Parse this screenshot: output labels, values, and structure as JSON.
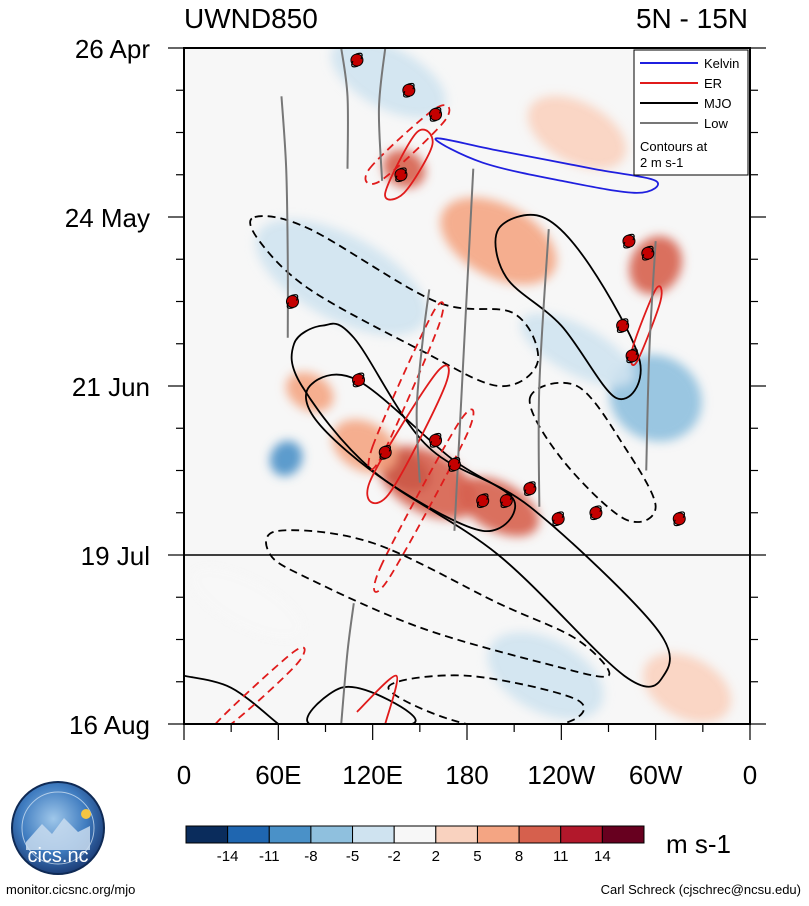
{
  "chart_data": {
    "type": "heatmap",
    "title_left": "UWND850",
    "title_right": "5N - 15N",
    "xlabels": [
      "0",
      "60E",
      "120E",
      "180",
      "120W",
      "60W",
      "0"
    ],
    "xlabel_lon": [
      0,
      60,
      120,
      180,
      240,
      300,
      360
    ],
    "ylabels": [
      "26 Apr",
      "24 May",
      "21 Jun",
      "19 Jul",
      "16 Aug"
    ],
    "ylabel_day": [
      0,
      28,
      56,
      84,
      112
    ],
    "xlim": [
      0,
      360
    ],
    "ylim": [
      0,
      112
    ],
    "forecast_start_day": 84,
    "legend": {
      "entries": [
        {
          "name": "Kelvin",
          "color": "#1f1fdf"
        },
        {
          "name": "ER",
          "color": "#e01b1b"
        },
        {
          "name": "MJO",
          "color": "#000000"
        },
        {
          "name": "Low",
          "color": "#777777"
        }
      ],
      "note_line1": "Contours at",
      "note_line2": "2 m s-1"
    },
    "colorbar": {
      "labels": [
        "-14",
        "-11",
        "-8",
        "-5",
        "-2",
        "2",
        "5",
        "8",
        "11",
        "14"
      ],
      "colors": [
        "#0a2c5c",
        "#1f66b0",
        "#4a91c8",
        "#8fc0de",
        "#cfe3f0",
        "#f7f7f7",
        "#f9d2bf",
        "#f4a583",
        "#d6604d",
        "#b2182b",
        "#67001f"
      ],
      "units": "m s-1"
    },
    "anomaly_blobs": [
      {
        "lon": 140,
        "day": 70,
        "rx": 18,
        "ry": 3,
        "value": 14
      },
      {
        "lon": 155,
        "day": 72,
        "rx": 34,
        "ry": 5,
        "value": 9
      },
      {
        "lon": 200,
        "day": 76,
        "rx": 28,
        "ry": 4,
        "value": 8
      },
      {
        "lon": 115,
        "day": 66,
        "rx": 22,
        "ry": 4,
        "value": 6
      },
      {
        "lon": 80,
        "day": 57,
        "rx": 16,
        "ry": 3,
        "value": 6
      },
      {
        "lon": 300,
        "day": 36,
        "rx": 16,
        "ry": 5,
        "value": 9
      },
      {
        "lon": 140,
        "day": 20,
        "rx": 14,
        "ry": 3,
        "value": 10
      },
      {
        "lon": 200,
        "day": 32,
        "rx": 40,
        "ry": 6,
        "value": 5
      },
      {
        "lon": 100,
        "day": 38,
        "rx": 60,
        "ry": 7,
        "value": -5
      },
      {
        "lon": 300,
        "day": 58,
        "rx": 30,
        "ry": 7,
        "value": -8
      },
      {
        "lon": 65,
        "day": 68,
        "rx": 10,
        "ry": 3,
        "value": -10
      },
      {
        "lon": 130,
        "day": 5,
        "rx": 40,
        "ry": 5,
        "value": -4
      },
      {
        "lon": 250,
        "day": 14,
        "rx": 34,
        "ry": 5,
        "value": 4
      },
      {
        "lon": 230,
        "day": 104,
        "rx": 40,
        "ry": 6,
        "value": -3
      },
      {
        "lon": 320,
        "day": 106,
        "rx": 30,
        "ry": 5,
        "value": 3
      },
      {
        "lon": 40,
        "day": 92,
        "rx": 40,
        "ry": 4,
        "value": -2
      },
      {
        "lon": 250,
        "day": 50,
        "rx": 40,
        "ry": 4,
        "value": -4
      }
    ],
    "mjo_contours": [
      {
        "sign": "pos",
        "points": [
          [
            88,
            46
          ],
          [
            108,
            48
          ],
          [
            155,
            66
          ],
          [
            220,
            76
          ],
          [
            300,
            96
          ],
          [
            305,
            104
          ],
          [
            280,
            104
          ],
          [
            200,
            84
          ],
          [
            120,
            70
          ],
          [
            75,
            56
          ],
          [
            70,
            49
          ]
        ]
      },
      {
        "sign": "pos",
        "points": [
          [
            80,
            56
          ],
          [
            110,
            55
          ],
          [
            170,
            68
          ],
          [
            210,
            75
          ],
          [
            190,
            80
          ],
          [
            130,
            72
          ],
          [
            85,
            62
          ]
        ]
      },
      {
        "sign": "pos",
        "points": [
          [
            200,
            30
          ],
          [
            228,
            28
          ],
          [
            258,
            36
          ],
          [
            290,
            52
          ],
          [
            275,
            58
          ],
          [
            240,
            46
          ],
          [
            205,
            38
          ]
        ]
      },
      {
        "sign": "pos",
        "points": [
          [
            0,
            104
          ],
          [
            30,
            106
          ],
          [
            60,
            112
          ]
        ]
      },
      {
        "sign": "pos",
        "points": [
          [
            80,
            112
          ],
          [
            100,
            106
          ],
          [
            130,
            108
          ],
          [
            145,
            112
          ]
        ]
      },
      {
        "sign": "neg",
        "points": [
          [
            45,
            28
          ],
          [
            80,
            30
          ],
          [
            160,
            42
          ],
          [
            210,
            44
          ],
          [
            225,
            52
          ],
          [
            200,
            56
          ],
          [
            150,
            50
          ],
          [
            80,
            40
          ],
          [
            48,
            32
          ]
        ]
      },
      {
        "sign": "neg",
        "points": [
          [
            60,
            80
          ],
          [
            120,
            82
          ],
          [
            200,
            92
          ],
          [
            250,
            98
          ],
          [
            270,
            104
          ],
          [
            230,
            102
          ],
          [
            150,
            96
          ],
          [
            80,
            88
          ],
          [
            55,
            84
          ]
        ]
      },
      {
        "sign": "neg",
        "points": [
          [
            220,
            58
          ],
          [
            250,
            56
          ],
          [
            280,
            66
          ],
          [
            300,
            76
          ],
          [
            280,
            78
          ],
          [
            240,
            68
          ]
        ]
      },
      {
        "sign": "neg",
        "points": [
          [
            130,
            106
          ],
          [
            180,
            104
          ],
          [
            250,
            108
          ],
          [
            240,
            112
          ],
          [
            180,
            112
          ]
        ]
      }
    ],
    "er_contours": [
      {
        "sign": "pos",
        "points": [
          [
            128,
            24
          ],
          [
            148,
            14
          ],
          [
            158,
            16
          ],
          [
            140,
            24
          ]
        ]
      },
      {
        "sign": "pos",
        "points": [
          [
            118,
            72
          ],
          [
            160,
            54
          ],
          [
            166,
            56
          ],
          [
            130,
            74
          ]
        ]
      },
      {
        "sign": "pos",
        "points": [
          [
            110,
            110
          ],
          [
            135,
            104
          ],
          [
            128,
            112
          ]
        ]
      },
      {
        "sign": "neg",
        "points": [
          [
            118,
            20
          ],
          [
            160,
            10
          ],
          [
            166,
            12
          ],
          [
            125,
            22
          ]
        ]
      },
      {
        "sign": "neg",
        "points": [
          [
            120,
            66
          ],
          [
            158,
            44
          ],
          [
            162,
            46
          ],
          [
            125,
            68
          ]
        ]
      },
      {
        "sign": "neg",
        "points": [
          [
            125,
            86
          ],
          [
            175,
            62
          ],
          [
            180,
            64
          ],
          [
            130,
            88
          ]
        ]
      },
      {
        "sign": "neg",
        "points": [
          [
            20,
            112
          ],
          [
            70,
            100
          ],
          [
            72,
            102
          ],
          [
            30,
            112
          ]
        ]
      },
      {
        "sign": "pos",
        "points": [
          [
            285,
            50
          ],
          [
            300,
            40
          ],
          [
            303,
            42
          ],
          [
            288,
            52
          ]
        ]
      }
    ],
    "kelvin_contours": [
      {
        "sign": "pos",
        "points": [
          [
            160,
            15
          ],
          [
            200,
            17
          ],
          [
            260,
            20
          ],
          [
            300,
            22
          ],
          [
            288,
            24
          ],
          [
            240,
            22
          ],
          [
            190,
            19
          ]
        ]
      }
    ],
    "low_tracks": [
      {
        "points": [
          [
            62,
            8
          ],
          [
            65,
            20
          ],
          [
            66,
            35
          ],
          [
            66,
            48
          ]
        ]
      },
      {
        "points": [
          [
            100,
            0
          ],
          [
            104,
            8
          ],
          [
            104,
            20
          ]
        ]
      },
      {
        "points": [
          [
            128,
            0
          ],
          [
            124,
            10
          ],
          [
            126,
            22
          ]
        ]
      },
      {
        "points": [
          [
            172,
            80
          ],
          [
            176,
            60
          ],
          [
            180,
            40
          ],
          [
            184,
            20
          ]
        ]
      },
      {
        "points": [
          [
            226,
            76
          ],
          [
            226,
            56
          ],
          [
            232,
            30
          ]
        ]
      },
      {
        "points": [
          [
            294,
            70
          ],
          [
            296,
            50
          ],
          [
            300,
            32
          ]
        ]
      },
      {
        "points": [
          [
            150,
            72
          ],
          [
            148,
            60
          ],
          [
            152,
            48
          ],
          [
            156,
            40
          ]
        ]
      },
      {
        "points": [
          [
            100,
            112
          ],
          [
            104,
            100
          ],
          [
            108,
            92
          ]
        ]
      }
    ],
    "tc_markers": [
      {
        "lon": 110,
        "day": 2
      },
      {
        "lon": 143,
        "day": 7
      },
      {
        "lon": 160,
        "day": 11
      },
      {
        "lon": 352,
        "day": 12
      },
      {
        "lon": 138,
        "day": 21
      },
      {
        "lon": 283,
        "day": 32
      },
      {
        "lon": 295,
        "day": 34
      },
      {
        "lon": 69,
        "day": 42
      },
      {
        "lon": 279,
        "day": 46
      },
      {
        "lon": 285,
        "day": 51
      },
      {
        "lon": 111,
        "day": 55
      },
      {
        "lon": 160,
        "day": 65
      },
      {
        "lon": 128,
        "day": 67
      },
      {
        "lon": 172,
        "day": 69
      },
      {
        "lon": 190,
        "day": 75
      },
      {
        "lon": 205,
        "day": 75
      },
      {
        "lon": 220,
        "day": 73
      },
      {
        "lon": 238,
        "day": 78
      },
      {
        "lon": 262,
        "day": 77
      },
      {
        "lon": 315,
        "day": 78
      }
    ]
  },
  "footer": {
    "left": "monitor.cicsnc.org/mjo",
    "right": "Carl Schreck (cjschrec@ncsu.edu)",
    "logo_text": "cics.nc",
    "logo_ring": "Cooperative Institute for Climate and Satellites"
  }
}
